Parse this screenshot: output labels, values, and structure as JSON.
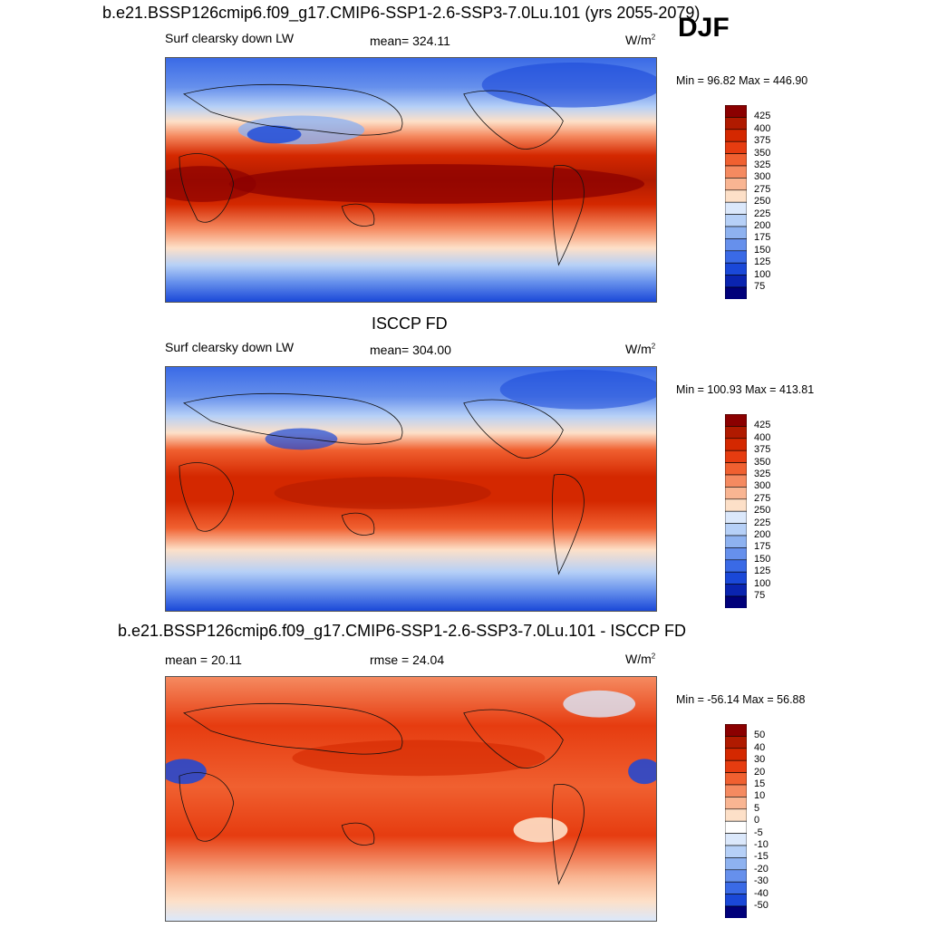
{
  "case_title": "b.e21.BSSP126cmip6.f09_g17.CMIP6-SSP1-2.6-SSP3-7.0Lu.101 (yrs 2055-2079)",
  "season": "DJF",
  "obs_title": "ISCCP FD",
  "diff_title": "b.e21.BSSP126cmip6.f09_g17.CMIP6-SSP1-2.6-SSP3-7.0Lu.101 - ISCCP FD",
  "panels": [
    {
      "left": "Surf clearsky down LW",
      "center": "mean= 324.11",
      "units": "W/m",
      "units_sup": "2",
      "minmax": "Min =  96.82 Max = 446.90"
    },
    {
      "left": "Surf clearsky down LW",
      "center": "mean= 304.00",
      "units": "W/m",
      "units_sup": "2",
      "minmax": "Min = 100.93 Max = 413.81"
    },
    {
      "left": "mean =  20.11",
      "center": "rmse =  24.04",
      "units": "W/m",
      "units_sup": "2",
      "minmax": "Min = -56.14 Max =  56.88"
    }
  ],
  "chart_data": [
    {
      "type": "heatmap",
      "title": "Surf clearsky down LW",
      "units": "W/m2",
      "mean": 324.11,
      "min": 96.82,
      "max": 446.9,
      "levels": [
        425,
        400,
        375,
        350,
        325,
        300,
        275,
        250,
        225,
        200,
        175,
        150,
        125,
        100,
        75
      ],
      "colors": [
        "#8b0000",
        "#b01a00",
        "#d42800",
        "#e63c10",
        "#f06030",
        "#f58a60",
        "#f9b592",
        "#fde0c8",
        "#dbe8fb",
        "#b6d0f7",
        "#8eb2f0",
        "#6690ec",
        "#3a6ae6",
        "#1a48d8",
        "#0a24b0",
        "#00007a"
      ]
    },
    {
      "type": "heatmap",
      "title": "ISCCP FD",
      "units": "W/m2",
      "mean": 304.0,
      "min": 100.93,
      "max": 413.81,
      "levels": [
        425,
        400,
        375,
        350,
        325,
        300,
        275,
        250,
        225,
        200,
        175,
        150,
        125,
        100,
        75
      ],
      "colors": [
        "#8b0000",
        "#b01a00",
        "#d42800",
        "#e63c10",
        "#f06030",
        "#f58a60",
        "#f9b592",
        "#fde0c8",
        "#dbe8fb",
        "#b6d0f7",
        "#8eb2f0",
        "#6690ec",
        "#3a6ae6",
        "#1a48d8",
        "#0a24b0",
        "#00007a"
      ]
    },
    {
      "type": "heatmap",
      "title": "b.e21.BSSP126cmip6.f09_g17.CMIP6-SSP1-2.6-SSP3-7.0Lu.101 - ISCCP FD",
      "units": "W/m2",
      "mean": 20.11,
      "rmse": 24.04,
      "min": -56.14,
      "max": 56.88,
      "levels": [
        50,
        40,
        30,
        20,
        15,
        10,
        5,
        0,
        -5,
        -10,
        -15,
        -20,
        -30,
        -40,
        -50
      ],
      "colors": [
        "#8b0000",
        "#b01a00",
        "#d42800",
        "#e63c10",
        "#f06030",
        "#f58a60",
        "#f9b592",
        "#fde0c8",
        "#ffffff",
        "#dbe8fb",
        "#b6d0f7",
        "#8eb2f0",
        "#6690ec",
        "#3a6ae6",
        "#1a48d8",
        "#00007a"
      ]
    }
  ]
}
